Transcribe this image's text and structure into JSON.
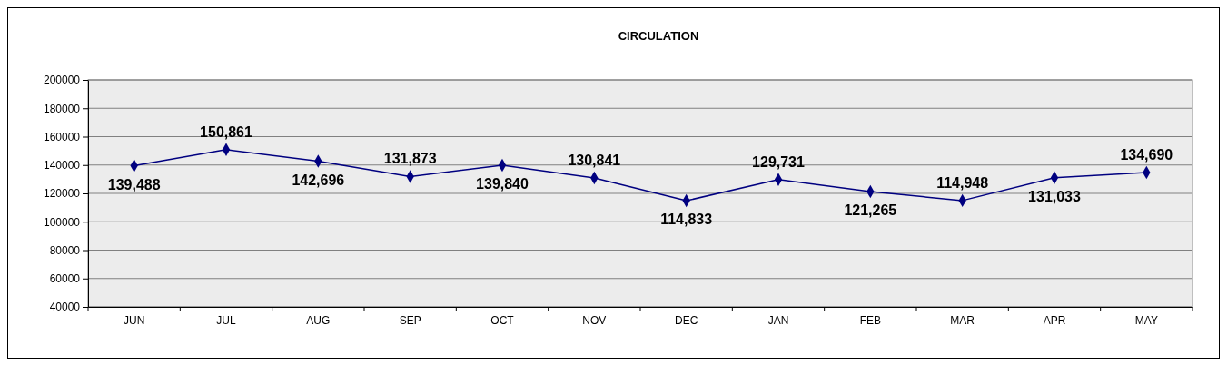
{
  "chart_data": {
    "type": "line",
    "title": "CIRCULATION",
    "categories": [
      "JUN",
      "JUL",
      "AUG",
      "SEP",
      "OCT",
      "NOV",
      "DEC",
      "JAN",
      "FEB",
      "MAR",
      "APR",
      "MAY"
    ],
    "series": [
      {
        "color": "#000080",
        "values": [
          139488,
          150861,
          142696,
          131873,
          139840,
          130841,
          114833,
          129731,
          121265,
          114948,
          131033,
          134690
        ],
        "value_labels": [
          "139,488",
          "150,861",
          "142,696",
          "131,873",
          "139,840",
          "130,841",
          "114,833",
          "129,731",
          "121,265",
          "114,948",
          "131,033",
          "134,690"
        ]
      }
    ],
    "ylim": [
      40000,
      200000
    ],
    "yticks": [
      40000,
      60000,
      80000,
      100000,
      120000,
      140000,
      160000,
      180000,
      200000
    ],
    "grid": "y",
    "marker": "diamond",
    "line_style": "solid"
  }
}
